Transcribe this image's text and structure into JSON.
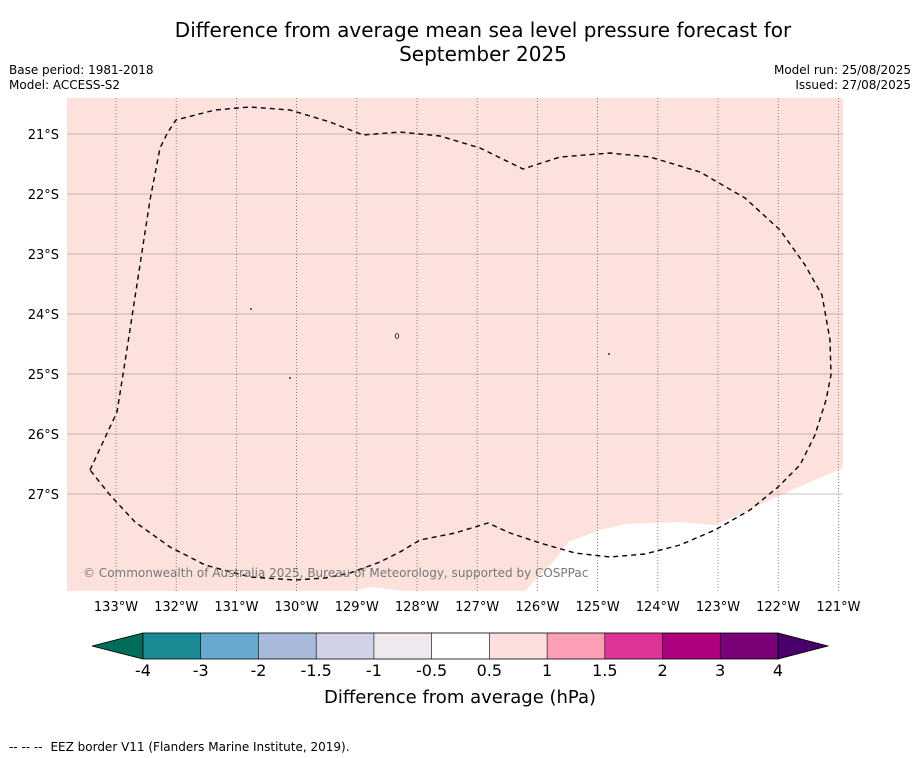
{
  "header": {
    "title_line1": "Difference from average mean sea level pressure forecast for",
    "title_line2": "September 2025",
    "base_period": "Base period: 1981-2018",
    "model": "Model: ACCESS-S2",
    "model_run": "Model run: 25/08/2025",
    "issued": "Issued: 27/08/2025"
  },
  "map": {
    "lon_ticks": [
      "133°W",
      "132°W",
      "131°W",
      "130°W",
      "129°W",
      "128°W",
      "127°W",
      "126°W",
      "125°W",
      "124°W",
      "123°W",
      "122°W",
      "121°W"
    ],
    "lat_ticks": [
      "21°S",
      "22°S",
      "23°S",
      "24°S",
      "25°S",
      "26°S",
      "27°S"
    ],
    "fill_color": "#fce1dd",
    "copyright": "© Commonwealth of Australia 2025, Bureau of Meteorology, supported by COSPPac"
  },
  "colorbar": {
    "label": "Difference from average (hPa)",
    "ticks": [
      "-4",
      "-3",
      "-2",
      "-1.5",
      "-1",
      "-0.5",
      "0.5",
      "1",
      "1.5",
      "2",
      "3",
      "4"
    ],
    "colors": [
      "#1b8c96",
      "#67a9cf",
      "#a8b9d9",
      "#d1d1e7",
      "#efe9ef",
      "#ffffff",
      "#fde0dd",
      "#fa9fb5",
      "#dd3497",
      "#ae017e",
      "#7a0177"
    ],
    "under_color": "#016c59",
    "over_color": "#49006a"
  },
  "footnote": {
    "dash": "-- -- --",
    "text": "EEZ border V11 (Flanders Marine Institute, 2019)."
  }
}
